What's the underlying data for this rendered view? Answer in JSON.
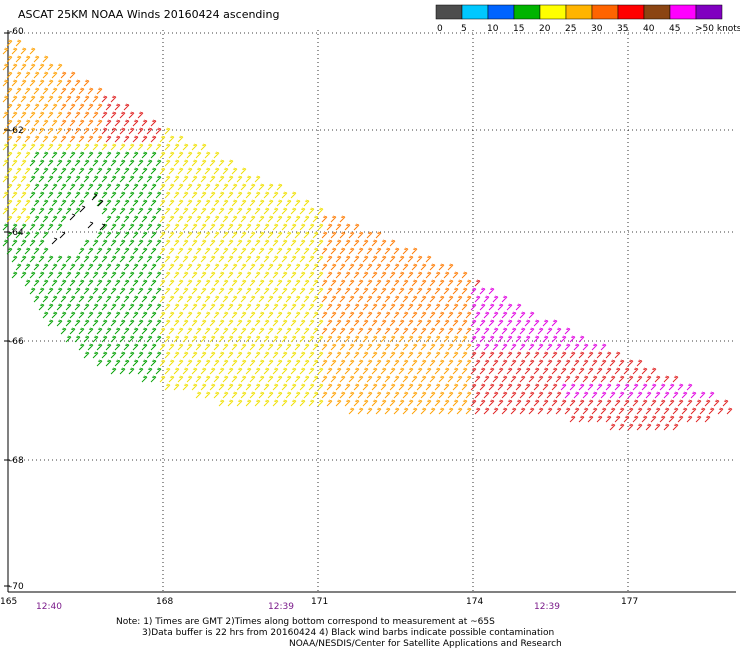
{
  "title": "ASCAT 25KM NOAA Winds 20160424 ascending",
  "color_scale": {
    "labels": [
      "0",
      "5",
      "10",
      "15",
      "20",
      "25",
      "30",
      "35",
      "40",
      "45",
      ">50 knots"
    ],
    "colors": [
      "#4d4d4d",
      "#00c8ff",
      "#0064ff",
      "#00b400",
      "#ffff00",
      "#ffb400",
      "#ff6400",
      "#ff0000",
      "#8b4513",
      "#ff00ff",
      "#8000c0"
    ]
  },
  "map": {
    "lon_ticks": [
      "165",
      "168",
      "171",
      "174",
      "177"
    ],
    "lat_ticks": [
      "-60",
      "-62",
      "-64",
      "-66",
      "-68",
      "-70"
    ],
    "times": [
      "12:40",
      "12:39",
      "12:39"
    ]
  },
  "notes": {
    "line1": "Note: 1) Times are GMT 2)Times along bottom correspond to measurement at ~65S",
    "line2": "3)Data buffer is 22 hrs from 20160424 4) Black wind barbs indicate possible contamination",
    "line3": "NOAA/NESDIS/Center for Satellite Applications and Research"
  }
}
